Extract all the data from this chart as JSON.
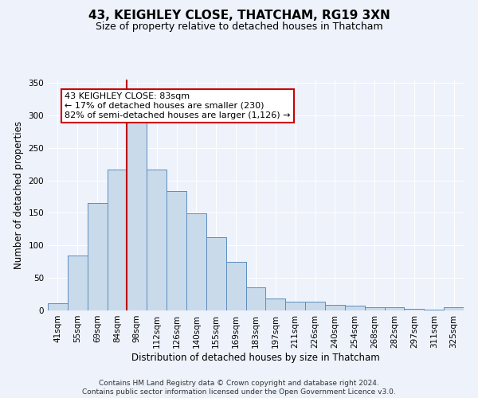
{
  "title": "43, KEIGHLEY CLOSE, THATCHAM, RG19 3XN",
  "subtitle": "Size of property relative to detached houses in Thatcham",
  "xlabel": "Distribution of detached houses by size in Thatcham",
  "ylabel": "Number of detached properties",
  "footer_line1": "Contains HM Land Registry data © Crown copyright and database right 2024.",
  "footer_line2": "Contains public sector information licensed under the Open Government Licence v3.0.",
  "bin_labels": [
    "41sqm",
    "55sqm",
    "69sqm",
    "84sqm",
    "98sqm",
    "112sqm",
    "126sqm",
    "140sqm",
    "155sqm",
    "169sqm",
    "183sqm",
    "197sqm",
    "211sqm",
    "226sqm",
    "240sqm",
    "254sqm",
    "268sqm",
    "282sqm",
    "297sqm",
    "311sqm",
    "325sqm"
  ],
  "bar_heights": [
    11,
    84,
    165,
    217,
    290,
    217,
    184,
    149,
    113,
    75,
    36,
    18,
    14,
    14,
    9,
    7,
    5,
    5,
    2,
    1,
    5
  ],
  "bar_color": "#c9daea",
  "bar_edge_color": "#5588bb",
  "background_color": "#edf2fb",
  "grid_color": "#ffffff",
  "ylim": [
    0,
    355
  ],
  "yticks": [
    0,
    50,
    100,
    150,
    200,
    250,
    300,
    350
  ],
  "annotation_title": "43 KEIGHLEY CLOSE: 83sqm",
  "annotation_line2": "← 17% of detached houses are smaller (230)",
  "annotation_line3": "82% of semi-detached houses are larger (1,126) →",
  "vline_x": 3.5,
  "red_line_color": "#bb0000",
  "annotation_box_color": "#ffffff",
  "annotation_box_edge_color": "#cc0000",
  "title_fontsize": 11,
  "subtitle_fontsize": 9,
  "ylabel_fontsize": 8.5,
  "xlabel_fontsize": 8.5,
  "tick_fontsize": 7.5,
  "annotation_fontsize": 8
}
